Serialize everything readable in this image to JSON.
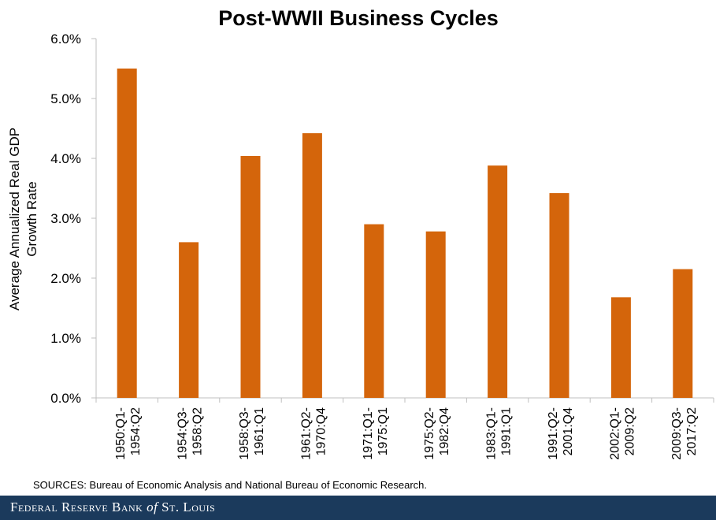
{
  "chart_data": {
    "type": "bar",
    "title": "Post-WWII Business Cycles",
    "ylabel_line1": "Average Annualized Real GDP",
    "ylabel_line2": "Growth Rate",
    "ylim": [
      0,
      6
    ],
    "yticks": [
      "0.0%",
      "1.0%",
      "2.0%",
      "3.0%",
      "4.0%",
      "5.0%",
      "6.0%"
    ],
    "categories": [
      [
        "1950:Q1-",
        "1954:Q2"
      ],
      [
        "1954:Q3-",
        "1958:Q2"
      ],
      [
        "1958:Q3-",
        "1961:Q1"
      ],
      [
        "1961:Q2-",
        "1970:Q4"
      ],
      [
        "1971:Q1-",
        "1975:Q1"
      ],
      [
        "1975:Q2-",
        "1982:Q4"
      ],
      [
        "1983:Q1-",
        "1991:Q1"
      ],
      [
        "1991:Q2-",
        "2001:Q4"
      ],
      [
        "2002:Q1-",
        "2009:Q2"
      ],
      [
        "2009:Q3-",
        "2017:Q2"
      ]
    ],
    "values": [
      5.5,
      2.6,
      4.04,
      4.42,
      2.9,
      2.78,
      3.88,
      3.42,
      1.68,
      2.15
    ],
    "bar_color": "#d4650b",
    "grid": false
  },
  "source": "SOURCES: Bureau of Economic Analysis and National Bureau of Economic Research.",
  "footer": {
    "part1": "Federal Reserve Bank ",
    "part2": "of",
    "part3": " St. Louis"
  }
}
